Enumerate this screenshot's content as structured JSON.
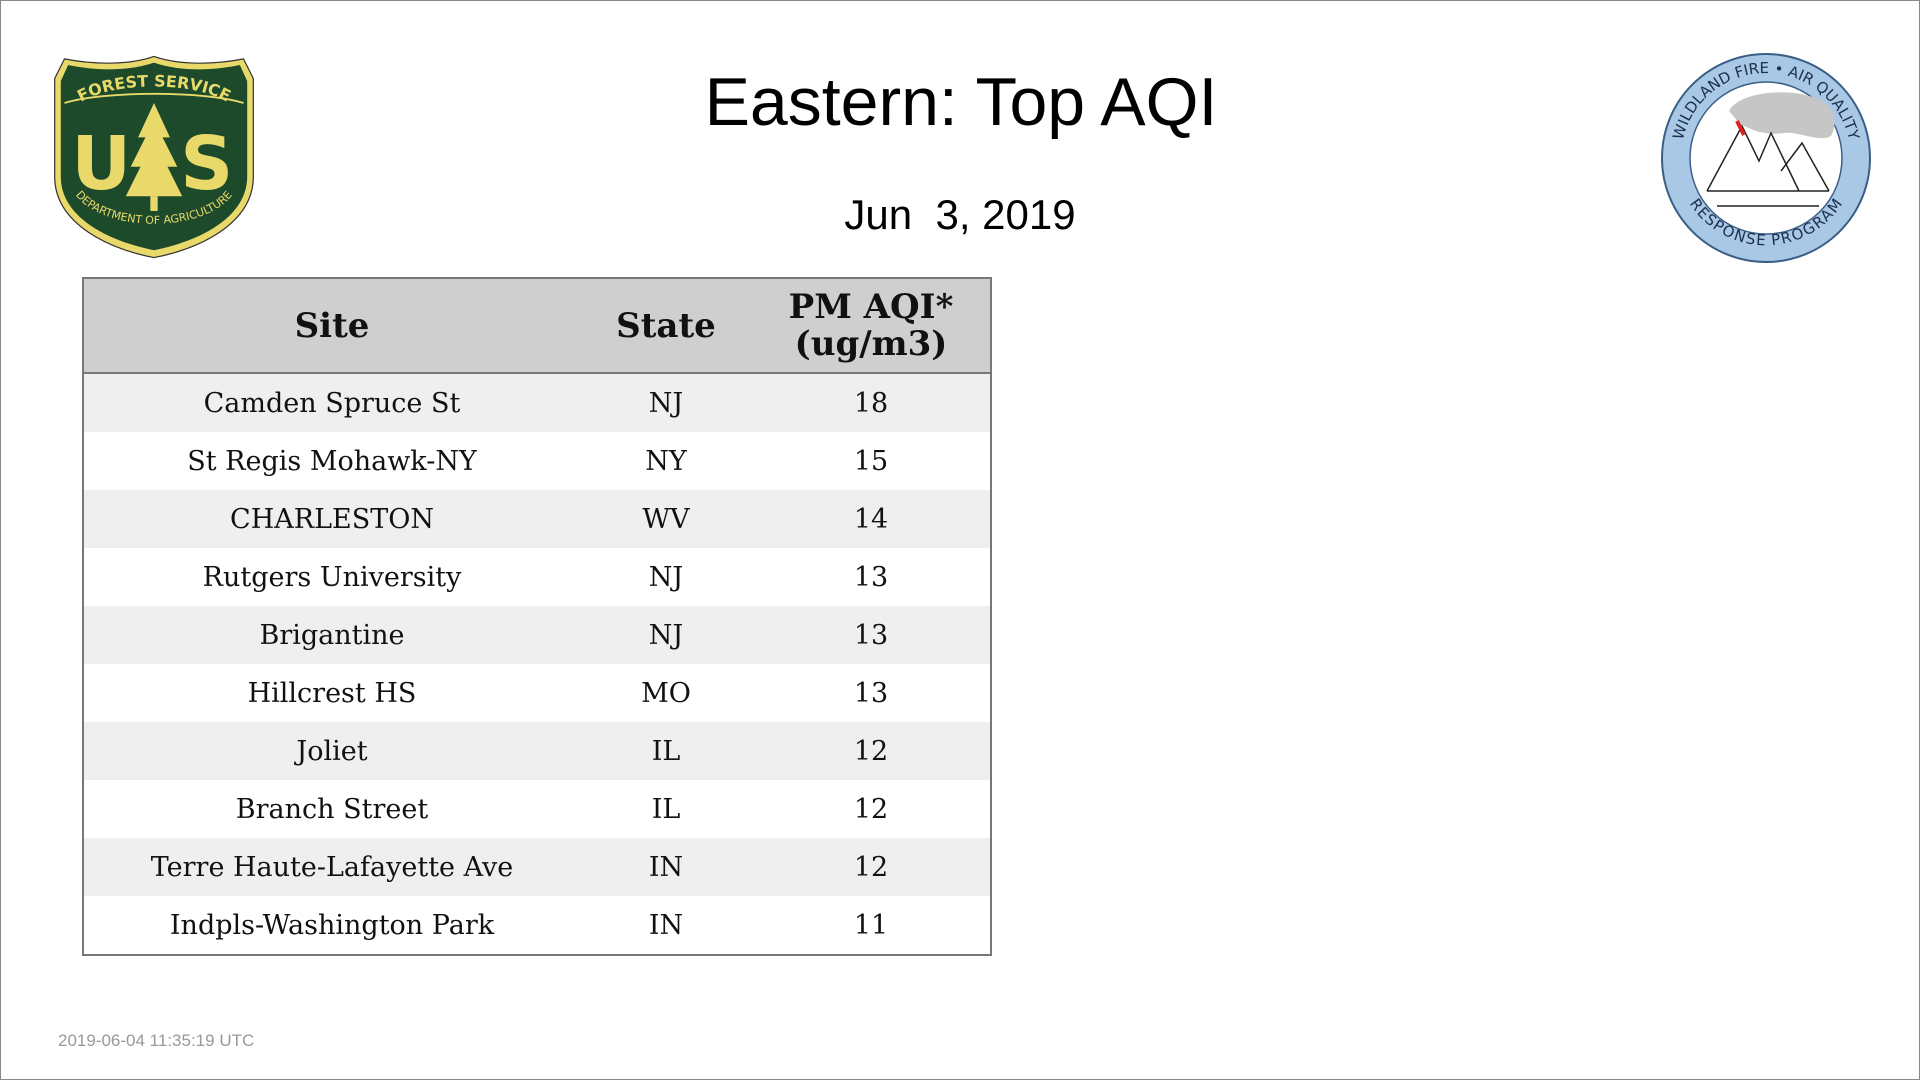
{
  "header": {
    "title": "Eastern: Top AQI",
    "date": "Jun  3, 2019"
  },
  "logos": {
    "left": {
      "top": "FOREST SERVICE",
      "letters": [
        "U",
        "S"
      ],
      "bottom": "DEPARTMENT OF AGRICULTURE"
    },
    "right": {
      "top": "WILDLAND FIRE • AIR QUALITY",
      "bottom": "RESPONSE PROGRAM"
    }
  },
  "table": {
    "columns": [
      "Site",
      "State",
      "PM AQI*\n(ug/m3)"
    ],
    "rows": [
      [
        "Camden Spruce St",
        "NJ",
        18
      ],
      [
        "St Regis Mohawk-NY",
        "NY",
        15
      ],
      [
        "CHARLESTON",
        "WV",
        14
      ],
      [
        "Rutgers University",
        "NJ",
        13
      ],
      [
        "Brigantine",
        "NJ",
        13
      ],
      [
        "Hillcrest HS",
        "MO",
        13
      ],
      [
        "Joliet",
        "IL",
        12
      ],
      [
        "Branch Street",
        "IL",
        12
      ],
      [
        "Terre Haute-Lafayette Ave",
        "IN",
        12
      ],
      [
        "Indpls-Washington Park",
        "IN",
        11
      ]
    ]
  },
  "footer": {
    "timestamp": "2019-06-04 11:35:19 UTC"
  }
}
